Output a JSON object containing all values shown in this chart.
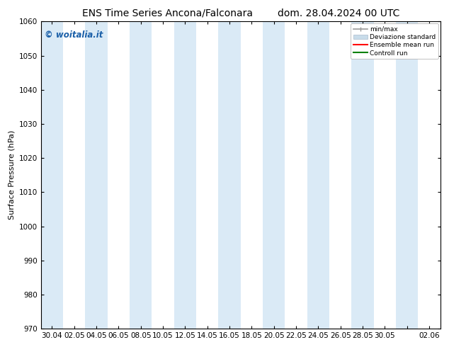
{
  "title_left": "ENS Time Series Ancona/Falconara",
  "title_right": "dom. 28.04.2024 00 UTC",
  "ylabel": "Surface Pressure (hPa)",
  "ylim": [
    970,
    1060
  ],
  "yticks": [
    970,
    980,
    990,
    1000,
    1010,
    1020,
    1030,
    1040,
    1050,
    1060
  ],
  "xtick_labels": [
    "30.04",
    "02.05",
    "04.05",
    "06.05",
    "08.05",
    "10.05",
    "12.05",
    "14.05",
    "16.05",
    "18.05",
    "20.05",
    "22.05",
    "24.05",
    "26.05",
    "28.05",
    "30.05",
    "",
    "02.06"
  ],
  "background_color": "#ffffff",
  "plot_bg_color": "#ffffff",
  "band_color": "#daeaf6",
  "watermark": "© woitalia.it",
  "watermark_color": "#1a5fa8",
  "legend_items": [
    {
      "label": "min/max",
      "color": "#999999",
      "lw": 1.2
    },
    {
      "label": "Deviazione standard",
      "color": "#c8dcea",
      "lw": 6
    },
    {
      "label": "Ensemble mean run",
      "color": "#ff0000",
      "lw": 1.5
    },
    {
      "label": "Controll run",
      "color": "#008000",
      "lw": 1.5
    }
  ],
  "title_fontsize": 10,
  "axis_fontsize": 8,
  "tick_fontsize": 7.5
}
